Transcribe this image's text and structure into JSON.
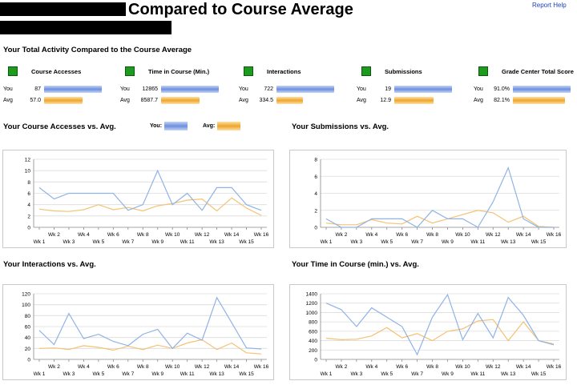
{
  "page": {
    "title": "Compared to Course Average",
    "report_help": "Report Help",
    "section_heading": "Your Total Activity Compared to the Course Average",
    "you_label": "You",
    "avg_label": "Avg",
    "legend_you": "You:",
    "legend_avg": "Avg:"
  },
  "colors": {
    "you": "#8fb3e6",
    "avg": "#f5c173",
    "metric_square": "#1e9a1e"
  },
  "metrics": [
    {
      "name": "Course Accesses",
      "you": "87",
      "avg": "57.0",
      "you_fill": 1.0,
      "avg_fill": 0.66
    },
    {
      "name": "Time in Course (Min.)",
      "you": "12865",
      "avg": "8587.7",
      "you_fill": 1.0,
      "avg_fill": 0.67
    },
    {
      "name": "Interactions",
      "you": "722",
      "avg": "334.5",
      "you_fill": 1.0,
      "avg_fill": 0.46
    },
    {
      "name": "Submissions",
      "you": "19",
      "avg": "12.9",
      "you_fill": 1.0,
      "avg_fill": 0.68
    },
    {
      "name": "Grade Center Total Score",
      "you": "91.0%",
      "avg": "82.1%",
      "you_fill": 1.0,
      "avg_fill": 0.9
    }
  ],
  "chart_data": [
    {
      "type": "line",
      "title": "Your Course Accesses vs. Avg.",
      "x": [
        "Wk 1",
        "Wk 2",
        "Wk 3",
        "Wk 4",
        "Wk 5",
        "Wk 6",
        "Wk 7",
        "Wk 8",
        "Wk 9",
        "Wk 10",
        "Wk 11",
        "Wk 12",
        "Wk 13",
        "Wk 14",
        "Wk 15",
        "Wk 16"
      ],
      "ylim": [
        0,
        12
      ],
      "yticks": [
        0,
        2,
        4,
        6,
        8,
        10,
        12
      ],
      "series": [
        {
          "name": "You",
          "values": [
            7,
            5,
            6,
            6,
            6,
            6,
            3,
            4,
            10,
            4,
            6,
            3,
            7,
            7,
            4,
            3
          ]
        },
        {
          "name": "Avg",
          "values": [
            3.2,
            2.9,
            2.8,
            3.1,
            4.0,
            3.1,
            3.5,
            2.9,
            3.8,
            4.2,
            4.8,
            5.0,
            2.9,
            5.2,
            3.4,
            2.1
          ]
        }
      ]
    },
    {
      "type": "line",
      "title": "Your Submissions vs. Avg.",
      "x": [
        "Wk 1",
        "Wk 2",
        "Wk 3",
        "Wk 4",
        "Wk 5",
        "Wk 6",
        "Wk 7",
        "Wk 8",
        "Wk 9",
        "Wk 10",
        "Wk 11",
        "Wk 12",
        "Wk 13",
        "Wk 14",
        "Wk 15",
        "Wk 16"
      ],
      "ylim": [
        0,
        8
      ],
      "yticks": [
        0,
        2,
        4,
        6,
        8
      ],
      "series": [
        {
          "name": "You",
          "values": [
            1,
            0,
            0,
            1,
            1,
            1,
            0,
            2,
            1,
            1,
            0,
            3,
            7,
            1,
            0,
            0
          ]
        },
        {
          "name": "Avg",
          "values": [
            0.5,
            0.3,
            0.3,
            0.9,
            0.5,
            0.4,
            1.3,
            0.5,
            1.0,
            1.5,
            2.0,
            1.7,
            0.6,
            1.3,
            0.1,
            0.0
          ]
        }
      ]
    },
    {
      "type": "line",
      "title": "Your Interactions vs. Avg.",
      "x": [
        "Wk 1",
        "Wk 2",
        "Wk 3",
        "Wk 4",
        "Wk 5",
        "Wk 6",
        "Wk 7",
        "Wk 8",
        "Wk 9",
        "Wk 10",
        "Wk 11",
        "Wk 12",
        "Wk 13",
        "Wk 14",
        "Wk 15",
        "Wk 16"
      ],
      "ylim": [
        0,
        120
      ],
      "yticks": [
        0,
        20,
        40,
        60,
        80,
        100,
        120
      ],
      "series": [
        {
          "name": "You",
          "values": [
            53,
            27,
            84,
            38,
            46,
            33,
            25,
            46,
            55,
            20,
            48,
            35,
            113,
            67,
            21,
            19
          ]
        },
        {
          "name": "Avg",
          "values": [
            20,
            21,
            18,
            25,
            22,
            17,
            24,
            18,
            26,
            20,
            30,
            36,
            18,
            30,
            12,
            10
          ]
        }
      ]
    },
    {
      "type": "line",
      "title": "Your Time in Course (min.) vs. Avg.",
      "x": [
        "Wk 1",
        "Wk 2",
        "Wk 3",
        "Wk 4",
        "Wk 5",
        "Wk 6",
        "Wk 7",
        "Wk 8",
        "Wk 9",
        "Wk 10",
        "Wk 11",
        "Wk 12",
        "Wk 13",
        "Wk 14",
        "Wk 15",
        "Wk 16"
      ],
      "ylim": [
        0,
        1400
      ],
      "yticks": [
        0,
        200,
        400,
        600,
        800,
        1000,
        1200,
        1400
      ],
      "series": [
        {
          "name": "You",
          "values": [
            1200,
            1060,
            700,
            1100,
            900,
            700,
            100,
            900,
            1380,
            420,
            980,
            460,
            1320,
            940,
            400,
            310
          ]
        },
        {
          "name": "Avg",
          "values": [
            450,
            420,
            430,
            500,
            680,
            460,
            550,
            400,
            600,
            650,
            820,
            850,
            400,
            800,
            400,
            330
          ]
        }
      ]
    }
  ]
}
